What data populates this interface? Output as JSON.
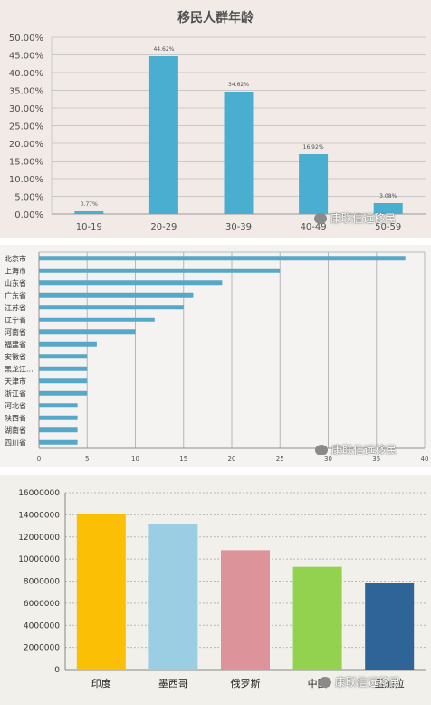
{
  "chart_data": [
    {
      "type": "bar",
      "title": "移民人群年龄",
      "categories": [
        "10-19",
        "20-29",
        "30-39",
        "40-49",
        "50-59"
      ],
      "values": [
        0.77,
        44.62,
        34.62,
        16.92,
        3.08
      ],
      "data_labels": [
        "0.77%",
        "44.62%",
        "34.62%",
        "16.92%",
        "3.08%"
      ],
      "ylim": [
        0,
        50
      ],
      "yticks": [
        "0.00%",
        "5.00%",
        "10.00%",
        "15.00%",
        "20.00%",
        "25.00%",
        "30.00%",
        "35.00%",
        "40.00%",
        "45.00%",
        "50.00%"
      ],
      "grid": true,
      "bar_color": "#4aaed1"
    },
    {
      "type": "bar",
      "orientation": "horizontal",
      "categories": [
        "北京市",
        "上海市",
        "山东省",
        "广东省",
        "江苏省",
        "辽宁省",
        "河南省",
        "福建省",
        "安徽省",
        "黑龙江...",
        "天津市",
        "浙江省",
        "河北省",
        "陕西省",
        "湖南省",
        "四川省"
      ],
      "values": [
        38,
        25,
        19,
        16,
        15,
        12,
        10,
        6,
        5,
        5,
        5,
        5,
        4,
        4,
        4,
        4
      ],
      "xlim": [
        0,
        40
      ],
      "xticks": [
        "0",
        "5",
        "10",
        "15",
        "20",
        "25",
        "30",
        "35",
        "40"
      ],
      "grid": true,
      "bar_color": "#56a8c8"
    },
    {
      "type": "bar",
      "categories": [
        "印度",
        "墨西哥",
        "俄罗斯",
        "中国",
        "孟加拉"
      ],
      "values": [
        14100000,
        13200000,
        10800000,
        9300000,
        7800000
      ],
      "colors": [
        "#fbbf05",
        "#9bcde3",
        "#dc949a",
        "#93d24e",
        "#2e6497"
      ],
      "ylim": [
        0,
        16000000
      ],
      "yticks": [
        "0",
        "2000000",
        "4000000",
        "6000000",
        "8000000",
        "10000000",
        "12000000",
        "14000000",
        "16000000"
      ],
      "grid": true
    }
  ],
  "watermark": {
    "text": "康联信远移民",
    "icon": "wechat-icon"
  }
}
